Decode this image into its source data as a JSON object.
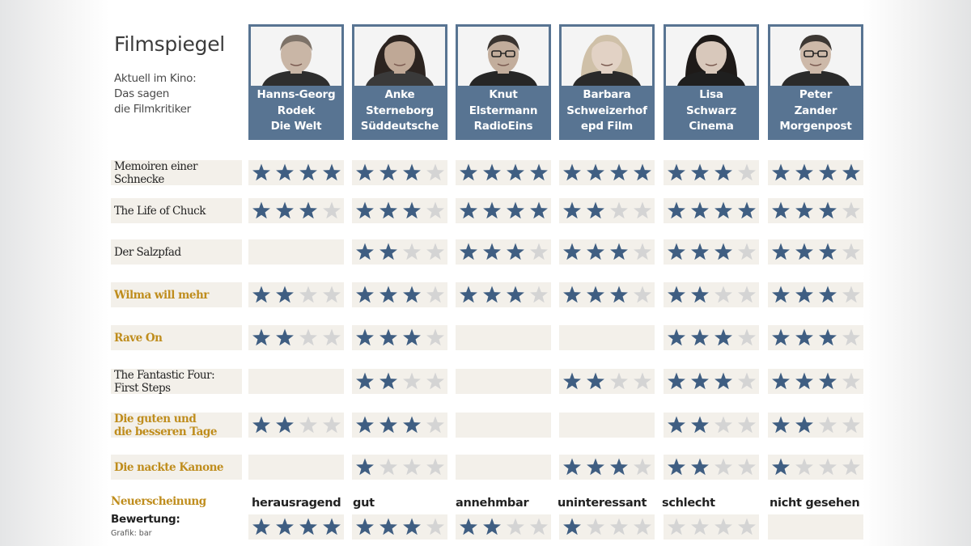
{
  "header": {
    "title": "Filmspiegel",
    "subtitle_lines": [
      "Aktuell im Kino:",
      "Das sagen",
      "die Filmkritiker"
    ]
  },
  "critics": [
    {
      "name_lines": [
        "Hanns-Georg",
        "Rodek"
      ],
      "outlet": "Die Welt"
    },
    {
      "name_lines": [
        "Anke",
        "Sterneborg"
      ],
      "outlet": "Süddeutsche"
    },
    {
      "name_lines": [
        "Knut",
        "Elstermann"
      ],
      "outlet": "RadioEins"
    },
    {
      "name_lines": [
        "Barbara",
        "Schweizerhof"
      ],
      "outlet": "epd Film"
    },
    {
      "name_lines": [
        "Lisa",
        "Schwarz"
      ],
      "outlet": "Cinema"
    },
    {
      "name_lines": [
        "Peter",
        "Zander"
      ],
      "outlet": "Morgenpost"
    }
  ],
  "films": [
    {
      "title_lines": [
        "Memoiren einer",
        "Schnecke"
      ],
      "is_new": false,
      "ratings": [
        4,
        3,
        4,
        4,
        3,
        4
      ]
    },
    {
      "title_lines": [
        "The Life of Chuck"
      ],
      "is_new": false,
      "ratings": [
        3,
        3,
        4,
        2,
        4,
        3
      ]
    },
    {
      "title_lines": [
        "Der Salzpfad"
      ],
      "is_new": false,
      "ratings": [
        null,
        2,
        3,
        3,
        3,
        3
      ]
    },
    {
      "title_lines": [
        "Wilma will mehr"
      ],
      "is_new": true,
      "ratings": [
        2,
        3,
        3,
        3,
        2,
        3
      ]
    },
    {
      "title_lines": [
        "Rave On"
      ],
      "is_new": true,
      "ratings": [
        2,
        3,
        null,
        null,
        3,
        3
      ]
    },
    {
      "title_lines": [
        "The Fantastic Four:",
        "First Steps"
      ],
      "is_new": false,
      "ratings": [
        null,
        2,
        null,
        2,
        3,
        3
      ]
    },
    {
      "title_lines": [
        "Die guten und",
        "die besseren Tage"
      ],
      "is_new": true,
      "ratings": [
        2,
        3,
        null,
        null,
        2,
        2
      ]
    },
    {
      "title_lines": [
        "Die nackte Kanone"
      ],
      "is_new": true,
      "ratings": [
        null,
        1,
        null,
        3,
        2,
        1
      ]
    }
  ],
  "legend": {
    "new_label": "Neuerscheinung",
    "rating_label": "Bewertung:",
    "credit": "Grafik: bar",
    "scale": [
      {
        "word": "herausragend",
        "stars": 4
      },
      {
        "word": "gut",
        "stars": 3
      },
      {
        "word": "annehmbar",
        "stars": 2
      },
      {
        "word": "uninteressant",
        "stars": 1
      },
      {
        "word": "schlecht",
        "stars": 0
      },
      {
        "word": "nicht gesehen",
        "stars": null
      }
    ]
  },
  "colors": {
    "accent": "#587492",
    "star_filled": "#3f5e82",
    "star_empty": "#d4d4d4",
    "cell_bg": "#f3f0ea",
    "new_film": "#bf8d1d"
  },
  "icons": {
    "star": "star-icon",
    "portrait": "portrait-icon"
  }
}
